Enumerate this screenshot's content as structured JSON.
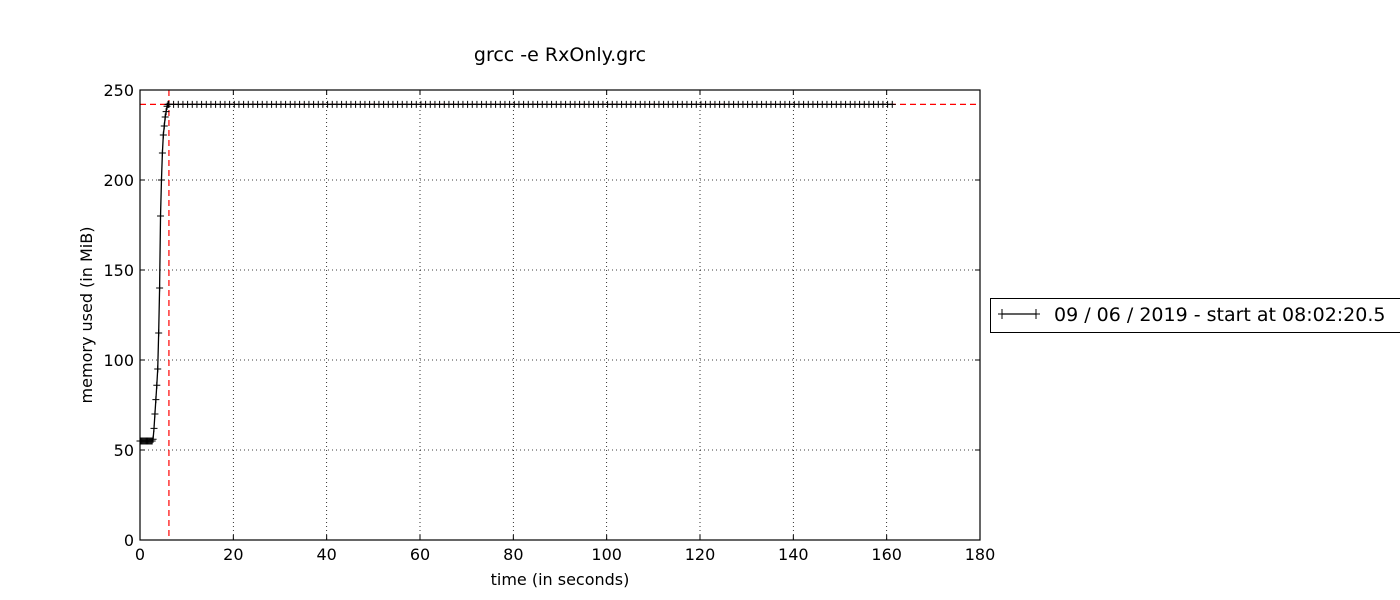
{
  "chart_data": {
    "type": "line",
    "title": "grcc -e RxOnly.grc",
    "xlabel": "time (in seconds)",
    "ylabel": "memory used (in MiB)",
    "xlim": [
      0,
      180
    ],
    "ylim": [
      0,
      250
    ],
    "xticks": [
      "0",
      "20",
      "40",
      "60",
      "80",
      "100",
      "120",
      "140",
      "160",
      "180"
    ],
    "yticks": [
      "0",
      "50",
      "100",
      "150",
      "200",
      "250"
    ],
    "grid": true,
    "legend_position": "right, outside plot",
    "series": [
      {
        "name": "09 / 06 / 2019 - start at 08:02:20.5",
        "color": "#000000",
        "marker": "plus",
        "x": [
          0,
          0.2,
          0.4,
          0.6,
          0.8,
          1.0,
          1.2,
          1.4,
          1.6,
          1.8,
          2.0,
          2.2,
          2.4,
          2.6,
          2.8,
          3.0,
          3.2,
          3.4,
          3.6,
          3.8,
          4.0,
          4.2,
          4.4,
          4.6,
          4.8,
          5.0,
          5.2,
          5.4,
          5.6,
          5.8,
          6.0,
          6.2
        ],
        "y": [
          55,
          55,
          55,
          55,
          55,
          55,
          55,
          55,
          55,
          55,
          55,
          55,
          55,
          55,
          56,
          62,
          70,
          78,
          86,
          95,
          115,
          140,
          180,
          200,
          215,
          225,
          230,
          235,
          238,
          241,
          242,
          242
        ],
        "plateau": {
          "x_start": 6.2,
          "x_end": 161.8,
          "step": 1.0,
          "y": 242
        }
      }
    ],
    "reference_lines": [
      {
        "orientation": "horizontal",
        "value": 242,
        "color": "#ff0000",
        "style": "dashed"
      },
      {
        "orientation": "vertical",
        "value": 6.2,
        "color": "#ff0000",
        "style": "dashed"
      }
    ]
  }
}
